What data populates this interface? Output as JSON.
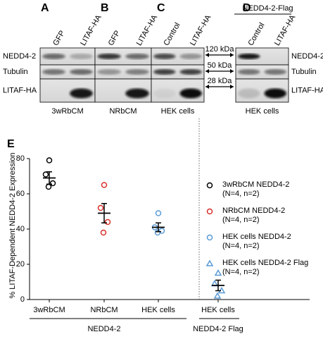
{
  "blots": {
    "panels": [
      {
        "letter": "A",
        "lanes": [
          "GFP",
          "LITAF-HA"
        ],
        "group": "3wRbCM"
      },
      {
        "letter": "B",
        "lanes": [
          "GFP",
          "LITAF-HA"
        ],
        "group": "NRbCM"
      },
      {
        "letter": "C",
        "lanes": [
          "Control",
          "LITAF-HA"
        ],
        "group": "HEK cells"
      },
      {
        "letter": "D",
        "lanes": [
          "Control",
          "LITAF-HA"
        ],
        "group": "HEK cells",
        "header": "NEDD4-2-Flag"
      }
    ],
    "rows": [
      "NEDD4-2",
      "Tubulin",
      "LITAF-HA"
    ],
    "markers": [
      "120 kDa",
      "50 kDa",
      "28 kDa"
    ]
  },
  "chart_data": {
    "type": "scatter",
    "letter": "E",
    "y_label": "% LITAF-Dependent NEDD4-2 Expression",
    "categories": [
      "3wRbCM",
      "NRbCM",
      "HEK cells",
      "HEK cells"
    ],
    "groups": [
      "NEDD4-2",
      "NEDD4-2 Flag"
    ],
    "ylim": [
      0,
      80
    ],
    "yticks": [
      0,
      20,
      40,
      60,
      80
    ],
    "series": [
      {
        "name": "3wRbCM NEDD4-2",
        "note": "(N=4, n=2)",
        "color": "#000000",
        "marker": "circle",
        "values": [
          79,
          71,
          66,
          64
        ],
        "mean": 69,
        "sem": 3.5
      },
      {
        "name": "NRbCM NEDD4-2",
        "note": "(N=4, n=2)",
        "color": "#d9302c",
        "marker": "circle",
        "values": [
          65,
          52,
          44,
          38
        ],
        "mean": 49,
        "sem": 5.5
      },
      {
        "name": "HEK cells NEDD4-2",
        "note": "(N=4, n=2)",
        "color": "#5b9bd5",
        "marker": "circle",
        "values": [
          49,
          41,
          39,
          38
        ],
        "mean": 41,
        "sem": 2.5
      },
      {
        "name": "HEK cells NEDD4-2 Flag",
        "note": "(N=4, n=2)",
        "color": "#5b9bd5",
        "marker": "triangle",
        "values": [
          15,
          9,
          5,
          2
        ],
        "mean": 8,
        "sem": 3
      }
    ]
  }
}
